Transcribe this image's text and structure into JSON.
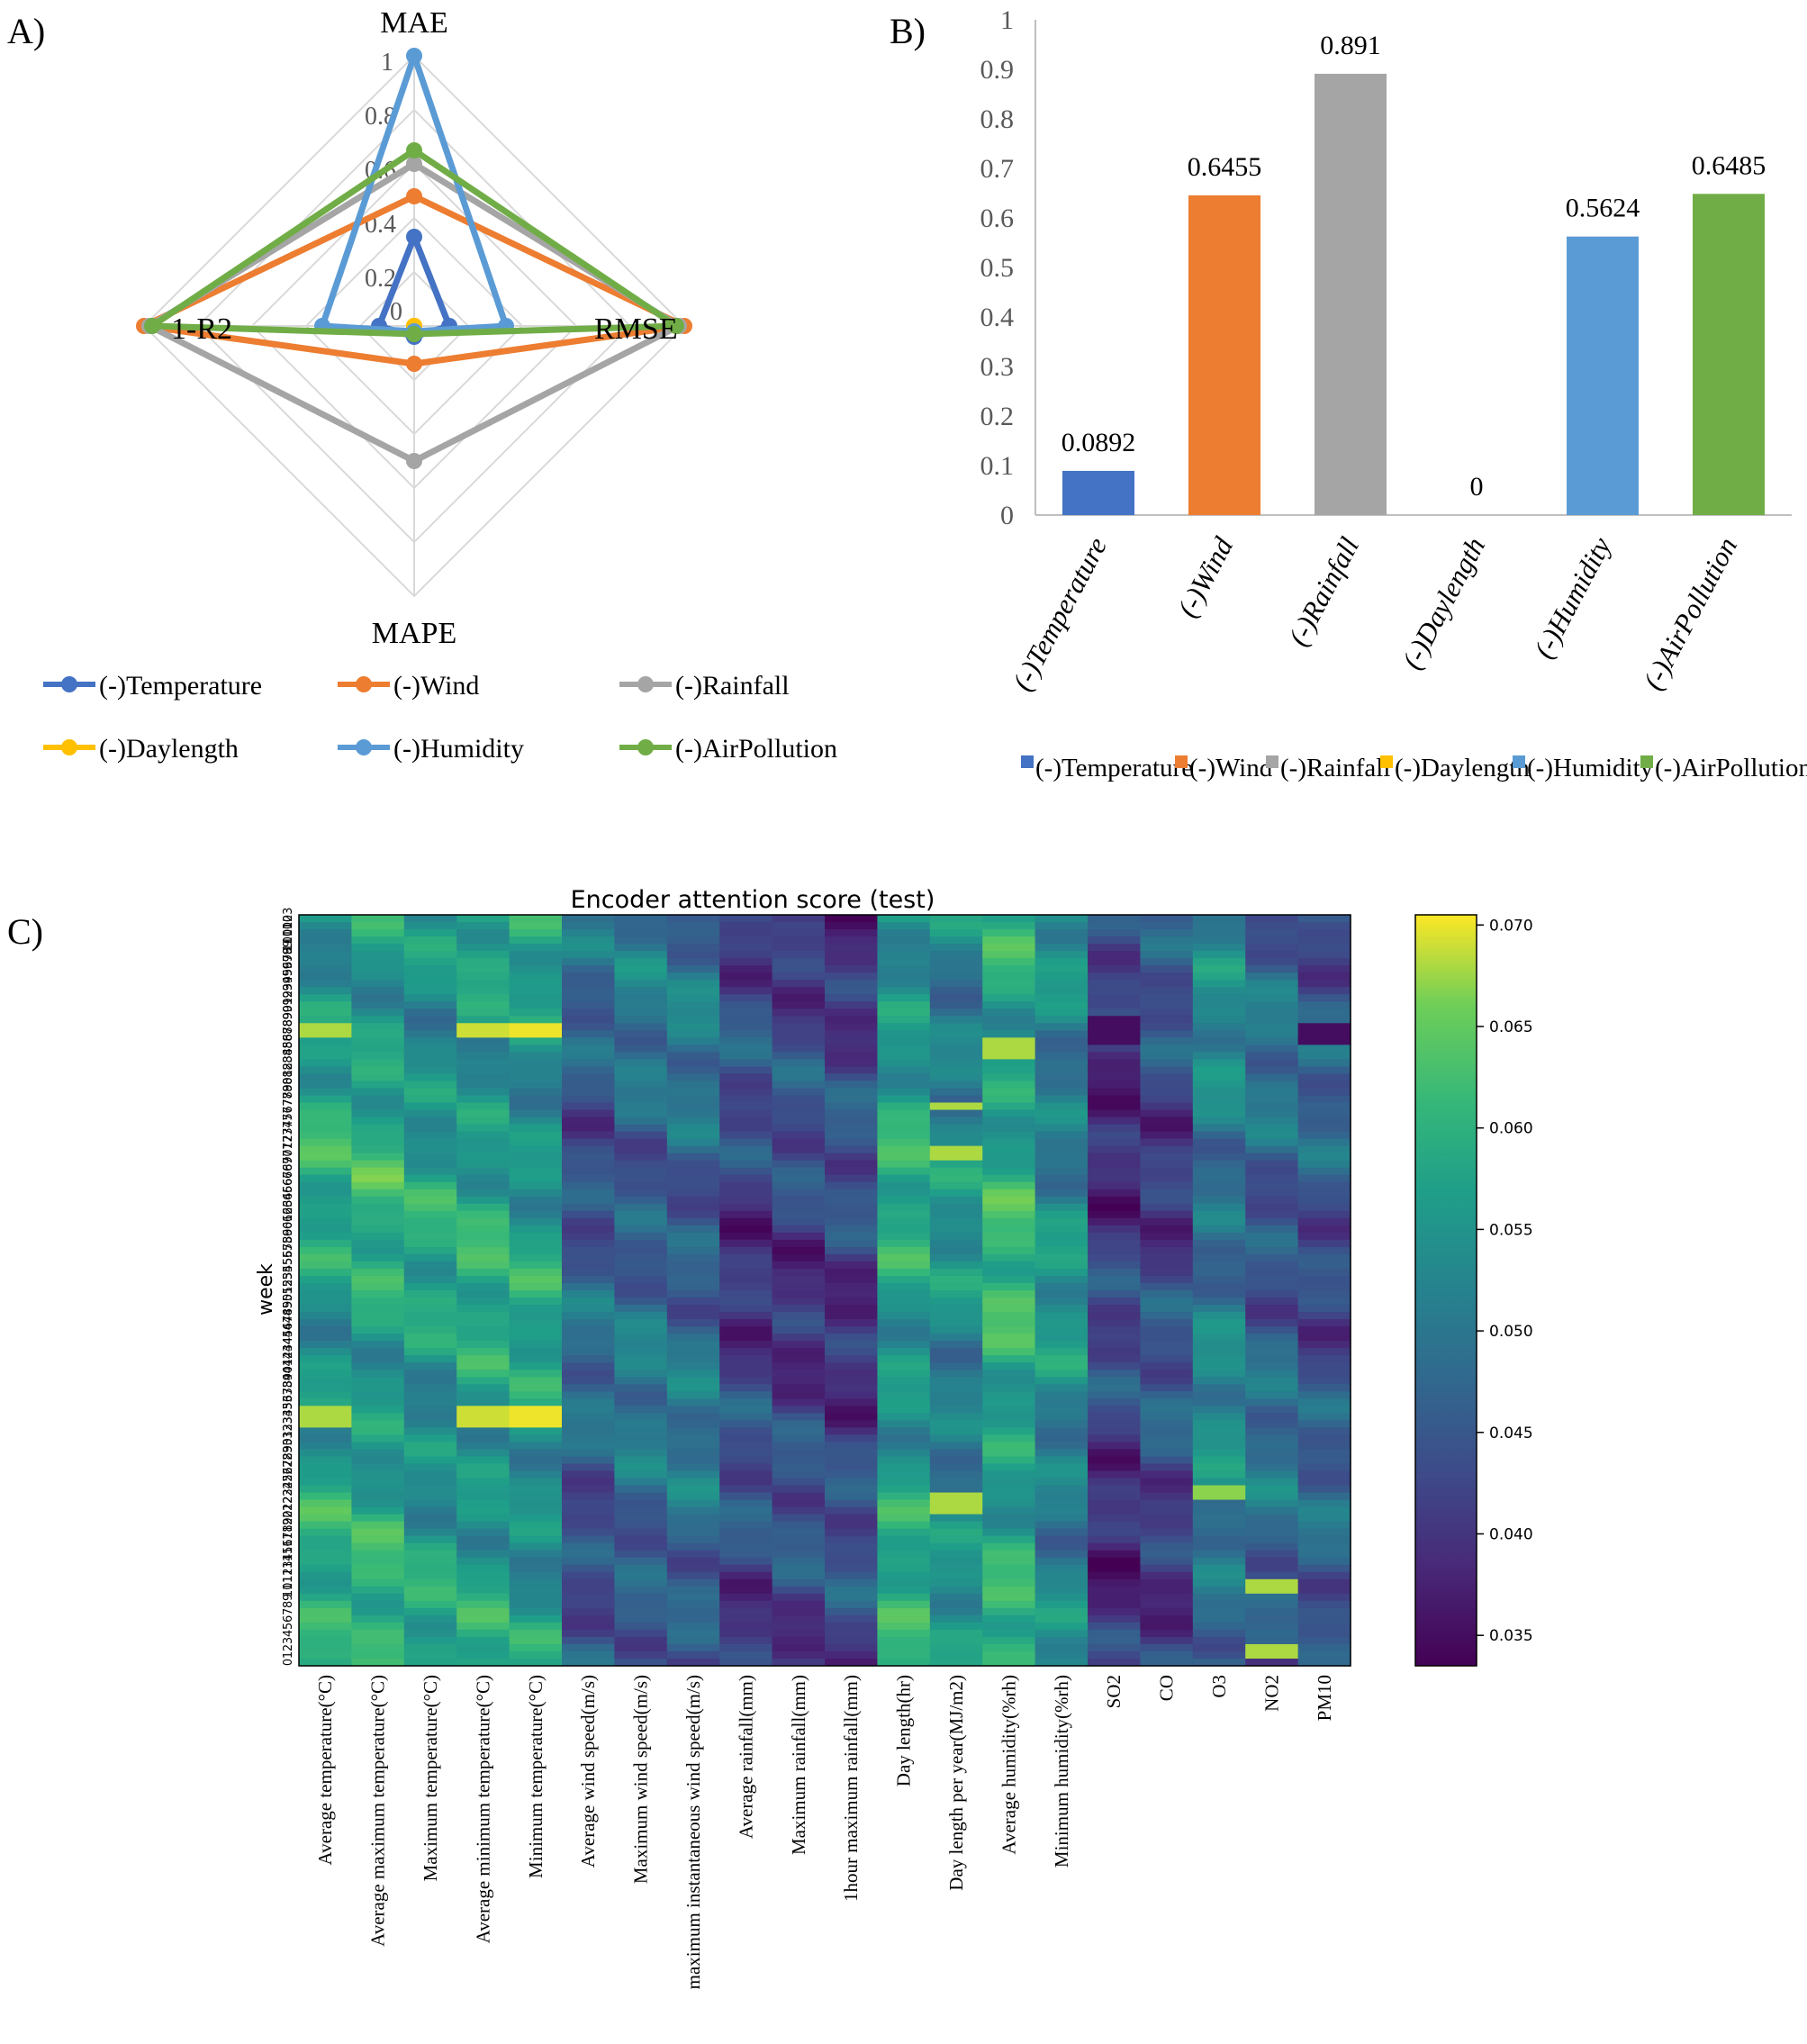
{
  "panel_labels": [
    "A)",
    "B)",
    "C)"
  ],
  "colors": {
    "temperature": "#4472C4",
    "wind": "#ED7D31",
    "rainfall": "#A5A5A5",
    "daylength": "#FFC000",
    "humidity": "#5B9BD5",
    "airpollution": "#70AD47"
  },
  "chart_data": [
    {
      "type": "radar",
      "panel": "A)",
      "axes": [
        "MAE",
        "RMSE",
        "MAPE",
        "1-R2"
      ],
      "radial_ticks": [
        "0",
        "0.2",
        "0.4",
        "0.6",
        "0.8",
        "1"
      ],
      "rlim": [
        0,
        1
      ],
      "series": [
        {
          "name": "(-)Temperature",
          "color": "#4472C4",
          "values": [
            0.33,
            0.13,
            0.04,
            0.13
          ]
        },
        {
          "name": "(-)Wind",
          "color": "#ED7D31",
          "values": [
            0.48,
            1.0,
            0.14,
            1.0
          ]
        },
        {
          "name": "(-)Rainfall",
          "color": "#A5A5A5",
          "values": [
            0.6,
            0.98,
            0.5,
            0.98
          ]
        },
        {
          "name": "(-)Daylength",
          "color": "#FFC000",
          "values": [
            0.0,
            0.0,
            0.0,
            0.0
          ]
        },
        {
          "name": "(-)Humidity",
          "color": "#5B9BD5",
          "values": [
            1.0,
            0.34,
            0.02,
            0.34
          ]
        },
        {
          "name": "(-)AirPollution",
          "color": "#70AD47",
          "values": [
            0.65,
            0.97,
            0.03,
            0.97
          ]
        }
      ],
      "legend": [
        "(-)Temperature",
        "(-)Wind",
        "(-)Rainfall",
        "(-)Daylength",
        "(-)Humidity",
        "(-)AirPollution"
      ]
    },
    {
      "type": "bar",
      "panel": "B)",
      "categories": [
        "(-)Temperature",
        "(-)Wind",
        "(-)Rainfall",
        "(-)Daylength",
        "(-)Humidity",
        "(-)AirPollution"
      ],
      "values": [
        0.0892,
        0.6455,
        0.891,
        0,
        0.5624,
        0.6485
      ],
      "value_labels": [
        "0.0892",
        "0.6455",
        "0.891",
        "0",
        "0.5624",
        "0.6485"
      ],
      "colors": [
        "#4472C4",
        "#ED7D31",
        "#A5A5A5",
        "#FFC000",
        "#5B9BD5",
        "#70AD47"
      ],
      "y_ticks": [
        "0",
        "0.1",
        "0.2",
        "0.3",
        "0.4",
        "0.5",
        "0.6",
        "0.7",
        "0.8",
        "0.9",
        "1"
      ],
      "ylim": [
        0,
        1
      ],
      "legend": [
        "(-)Temperature",
        "(-)Wind",
        "(-)Rainfall",
        "(-)Daylength",
        "(-)Humidity",
        "(-)AirPollution"
      ]
    },
    {
      "type": "heatmap",
      "panel": "C)",
      "title": "Encoder attention score (test)",
      "ylabel": "week",
      "y_ticks": [
        "103",
        "102",
        "101",
        "100",
        "99",
        "98",
        "97",
        "96",
        "95",
        "94",
        "93",
        "92",
        "91",
        "90",
        "89",
        "88",
        "87",
        "86",
        "85",
        "84",
        "83",
        "82",
        "81",
        "80",
        "79",
        "78",
        "77",
        "76",
        "75",
        "74",
        "73",
        "72",
        "71",
        "70",
        "69",
        "68",
        "67",
        "66",
        "65",
        "64",
        "63",
        "62",
        "61",
        "60",
        "59",
        "58",
        "57",
        "56",
        "55",
        "54",
        "53",
        "52",
        "51",
        "50",
        "49",
        "48",
        "47",
        "46",
        "45",
        "44",
        "43",
        "42",
        "41",
        "40",
        "39",
        "38",
        "37",
        "36",
        "35",
        "34",
        "33",
        "32",
        "31",
        "30",
        "29",
        "28",
        "27",
        "26",
        "25",
        "24",
        "23",
        "22",
        "21",
        "20",
        "19",
        "18",
        "17",
        "16",
        "15",
        "14",
        "13",
        "12",
        "11",
        "10",
        "9",
        "8",
        "7",
        "6",
        "5",
        "4",
        "3",
        "2",
        "1",
        "0"
      ],
      "columns": [
        "Average temperature(°C)",
        "Average maximum temperature(°C)",
        "Maximum temperature(°C)",
        "Average minimum temperature(°C)",
        "Minimum temperature(°C)",
        "Average wind speed(m/s)",
        "Maximum wind speed(m/s)",
        "maximum instantaneous wind speed(m/s)",
        "Average rainfall(mm)",
        "Maximum rainfall(mm)",
        "1hour maximum rainfall(mm)",
        "Day length(hr)",
        "Day length per year(MJ/m2)",
        "Average humidity(%rh)",
        "Minimum humidity(%rh)",
        "SO2",
        "CO",
        "O3",
        "NO2",
        "PM10"
      ],
      "colorbar_ticks": [
        "0.070",
        "0.065",
        "0.060",
        "0.055",
        "0.050",
        "0.045",
        "0.040",
        "0.035"
      ],
      "vmin": 0.0335,
      "vmax": 0.0705,
      "column_means": [
        0.057,
        0.058,
        0.056,
        0.057,
        0.056,
        0.046,
        0.048,
        0.048,
        0.042,
        0.042,
        0.042,
        0.057,
        0.053,
        0.059,
        0.053,
        0.041,
        0.043,
        0.051,
        0.047,
        0.045
      ],
      "hotspots": [
        {
          "column": "Average temperature(°C)",
          "weeks": [
            33,
            34,
            35,
            87,
            88
          ],
          "value": 0.068
        },
        {
          "column": "Average minimum temperature(°C)",
          "weeks": [
            33,
            34,
            35,
            87,
            88
          ],
          "value": 0.069
        },
        {
          "column": "Minimum temperature(°C)",
          "weeks": [
            33,
            34,
            35,
            87,
            88
          ],
          "value": 0.07
        },
        {
          "column": "Day length per year(MJ/m2)",
          "weeks": [
            21,
            22,
            23,
            70,
            71,
            77
          ],
          "value": 0.068
        },
        {
          "column": "Average humidity(%rh)",
          "weeks": [
            84,
            85,
            86
          ],
          "value": 0.068
        },
        {
          "column": "O3",
          "weeks": [
            23,
            24
          ],
          "value": 0.067
        },
        {
          "column": "NO2",
          "weeks": [
            1,
            2,
            10,
            11
          ],
          "value": 0.068
        },
        {
          "column": "SO2",
          "weeks": [
            86,
            87,
            88,
            89
          ],
          "value": 0.035
        },
        {
          "column": "PM10",
          "weeks": [
            86,
            87,
            88
          ],
          "value": 0.035
        }
      ]
    }
  ]
}
